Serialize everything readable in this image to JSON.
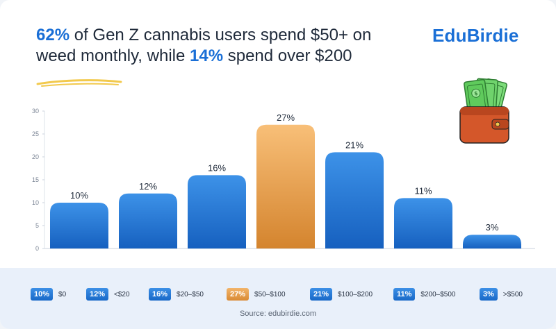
{
  "headline": {
    "part1": "62%",
    "part2": " of Gen Z cannabis users spend $50+ on weed monthly, while ",
    "part3": "14%",
    "part4": " spend over $200"
  },
  "brand": "EduBirdie",
  "source": "Source: edubirdie.com",
  "colors": {
    "blue": "#1f78d8",
    "orange": "#e89a45",
    "accent": "#1a6fd6"
  },
  "icons": [
    "wallet-money-icon"
  ],
  "chart_data": {
    "type": "bar",
    "categories": [
      "$0",
      "<$20",
      "$20–$50",
      "$50–$100",
      "$100–$200",
      "$200–$500",
      ">$500"
    ],
    "values": [
      10,
      12,
      16,
      27,
      21,
      11,
      3
    ],
    "data_labels": [
      "10%",
      "12%",
      "16%",
      "27%",
      "21%",
      "11%",
      "3%"
    ],
    "highlight_index": 3,
    "y_ticks": [
      0,
      5,
      10,
      15,
      20,
      25,
      30
    ],
    "ylim": [
      0,
      30
    ],
    "grid": false,
    "legend_position": "bottom",
    "title": "",
    "xlabel": "",
    "ylabel": ""
  }
}
